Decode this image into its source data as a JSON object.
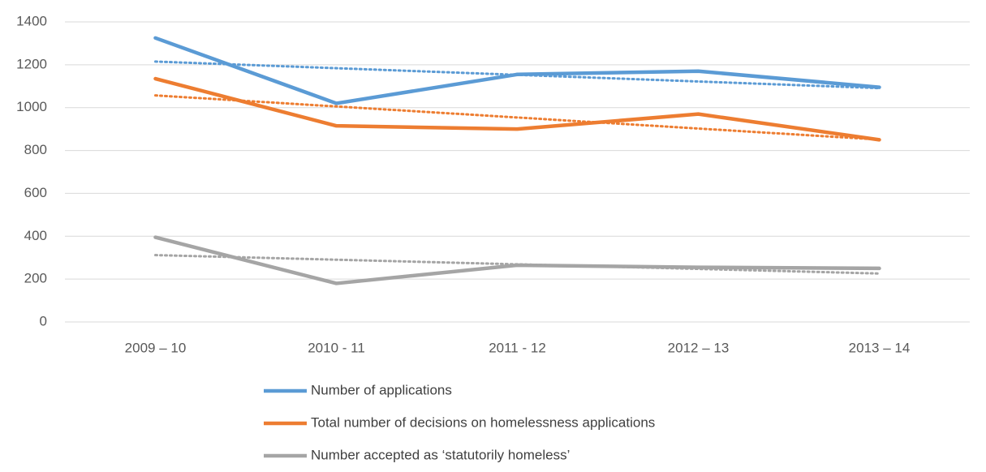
{
  "chart_data": {
    "type": "line",
    "categories": [
      "2009 – 10",
      "2010 - 11",
      "2011 - 12",
      "2012 – 13",
      "2013 – 14"
    ],
    "series": [
      {
        "name": "Number of applications",
        "color": "#5b9bd5",
        "values": [
          1325,
          1020,
          1155,
          1170,
          1095
        ]
      },
      {
        "name": "Total number of decisions on homelessness applications",
        "color": "#ed7d31",
        "values": [
          1135,
          915,
          900,
          970,
          850
        ]
      },
      {
        "name": "Number accepted as ‘statutorily homeless’",
        "color": "#a5a5a5",
        "values": [
          395,
          180,
          265,
          255,
          250
        ]
      }
    ],
    "ylim": [
      0,
      1400
    ],
    "yticks": [
      0,
      200,
      400,
      600,
      800,
      1000,
      1200,
      1400
    ],
    "grid": true,
    "trendline": true,
    "legend": "bottom"
  }
}
